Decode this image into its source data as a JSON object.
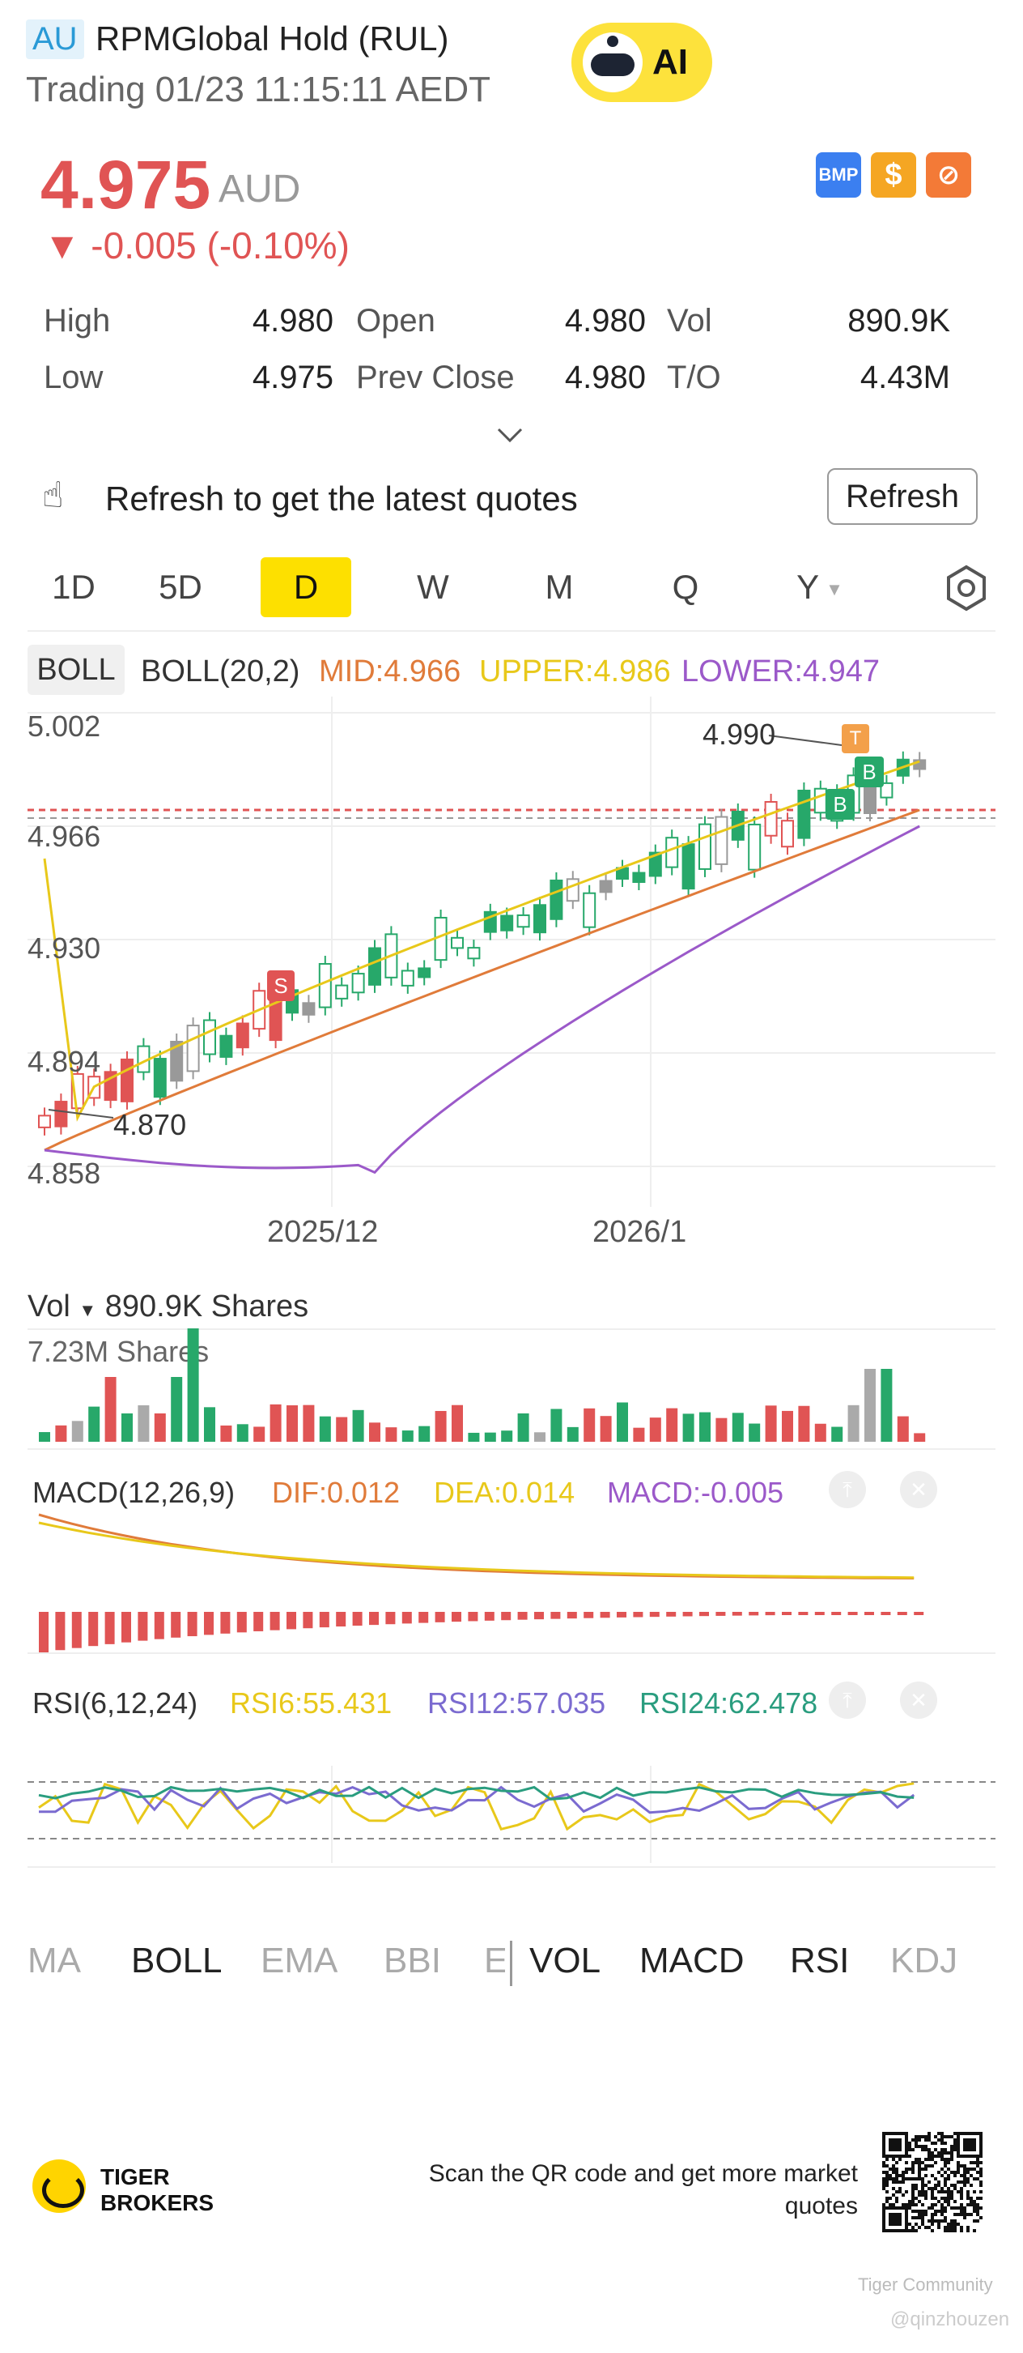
{
  "header": {
    "market_badge": "AU",
    "title": "RPMGlobal Hold (RUL)",
    "subtitle": "Trading 01/23 11:15:11 AEDT",
    "ai_label": "AI"
  },
  "quote": {
    "price": "4.975",
    "currency": "AUD",
    "change": "▼ -0.005 (-0.10%)",
    "icon_bmp": "BMP",
    "icon_dollar": "$",
    "price_color": "#e05454"
  },
  "stats": {
    "high_label": "High",
    "high_value": "4.980",
    "open_label": "Open",
    "open_value": "4.980",
    "vol_label": "Vol",
    "vol_value": "890.9K",
    "low_label": "Low",
    "low_value": "4.975",
    "prev_close_label": "Prev Close",
    "prev_close_value": "4.980",
    "to_label": "T/O",
    "to_value": "4.43M"
  },
  "refresh": {
    "text": "Refresh to get the latest quotes",
    "button": "Refresh"
  },
  "timeframes": [
    "1D",
    "5D",
    "D",
    "W",
    "M",
    "Q",
    "Y"
  ],
  "active_timeframe": "D",
  "boll": {
    "tag": "BOLL",
    "params": "BOLL(20,2)",
    "mid": "MID:4.966",
    "upper": "UPPER:4.986",
    "lower": "LOWER:4.947"
  },
  "main_chart": {
    "y_labels": [
      "5.002",
      "4.966",
      "4.930",
      "4.894",
      "4.858"
    ],
    "x_labels": [
      "2025/12",
      "2026/1"
    ],
    "high_marker": "4.990",
    "low_marker": "4.870",
    "signal_s": "S",
    "signal_b": "B",
    "signal_t": "T"
  },
  "volume": {
    "title": "Vol",
    "value": "890.9K Shares",
    "max_label": "7.23M Shares"
  },
  "macd": {
    "title": "MACD(12,26,9)",
    "dif": "DIF:0.012",
    "dea": "DEA:0.014",
    "macd": "MACD:-0.005"
  },
  "rsi": {
    "title": "RSI(6,12,24)",
    "rsi6": "RSI6:55.431",
    "rsi12": "RSI12:57.035",
    "rsi24": "RSI24:62.478"
  },
  "indicator_tabs": {
    "main": [
      "MA",
      "BOLL",
      "EMA",
      "BBI",
      "E"
    ],
    "sub": [
      "VOL",
      "MACD",
      "RSI",
      "KDJ"
    ]
  },
  "footer": {
    "brand_line1": "TIGER",
    "brand_line2": "BROKERS",
    "scan_text": "Scan the QR code and get more market quotes",
    "community": "Tiger Community",
    "handle": "@qinzhouzen"
  },
  "colors": {
    "up": "#e05454",
    "down": "#27a86a",
    "mid": "#e07b3a",
    "upper": "#e8c81a",
    "lower": "#9b59c9",
    "rsi6": "#e8c81a",
    "rsi12": "#7b6bd0",
    "rsi24": "#2a9d7f"
  }
}
